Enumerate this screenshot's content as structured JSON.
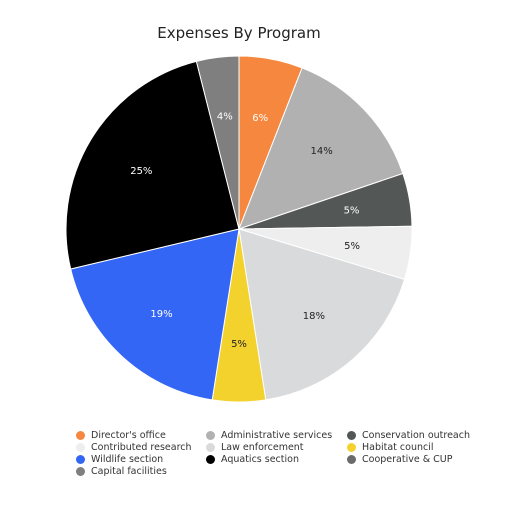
{
  "chart_data": {
    "type": "pie",
    "title": "Expenses By Program",
    "slices": [
      {
        "name": "Director's office",
        "value": 6,
        "label": "6%",
        "color": "#f5883e",
        "label_color": "#ffffff"
      },
      {
        "name": "Administrative services",
        "value": 14,
        "label": "14%",
        "color": "#b1b1b1",
        "label_color": "#222222"
      },
      {
        "name": "Conservation outreach",
        "value": 5,
        "label": "5%",
        "color": "#535755",
        "label_color": "#ffffff"
      },
      {
        "name": "Contributed research",
        "value": 5,
        "label": "5%",
        "color": "#eeeeee",
        "label_color": "#222222"
      },
      {
        "name": "Law enforcement",
        "value": 18,
        "label": "18%",
        "color": "#d9dadb",
        "label_color": "#222222"
      },
      {
        "name": "Habitat council",
        "value": 5,
        "label": "5%",
        "color": "#f3d22e",
        "label_color": "#222222"
      },
      {
        "name": "Wildlife section",
        "value": 19,
        "label": "19%",
        "color": "#3466f5",
        "label_color": "#ffffff"
      },
      {
        "name": "Aquatics section",
        "value": 25,
        "label": "25%",
        "color": "#000000",
        "label_color": "#ffffff"
      },
      {
        "name": "Capital facilities",
        "value": 4,
        "label": "4%",
        "color": "#7f7f7f",
        "label_color": "#ffffff"
      }
    ],
    "legend": {
      "placement": "bottom",
      "columns": [
        [
          "Director's office",
          "Contributed research",
          "Wildlife section",
          "Capital facilities"
        ],
        [
          "Administrative services",
          "Law enforcement",
          "Aquatics section"
        ],
        [
          "Conservation outreach",
          "Habitat council",
          "Cooperative & CUP"
        ]
      ],
      "colors": {
        "Director's office": "#f5883e",
        "Contributed research": "#eeeeee",
        "Wildlife section": "#3466f5",
        "Capital facilities": "#7f7f7f",
        "Administrative services": "#b1b1b1",
        "Law enforcement": "#d9dadb",
        "Aquatics section": "#000000",
        "Conservation outreach": "#535755",
        "Habitat council": "#f3d22e",
        "Cooperative & CUP": "#6b6b6b"
      }
    }
  }
}
